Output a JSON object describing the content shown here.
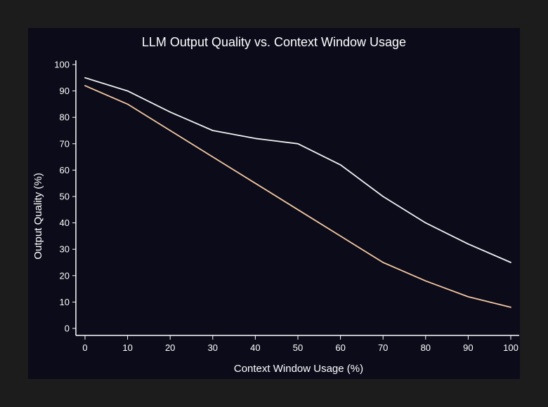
{
  "chart_data": {
    "type": "line",
    "title": "LLM Output Quality vs. Context Window Usage",
    "xlabel": "Context Window Usage (%)",
    "ylabel": "Output Quality (%)",
    "x": [
      0,
      10,
      20,
      30,
      40,
      50,
      60,
      70,
      80,
      90,
      100
    ],
    "xticks": [
      0,
      10,
      20,
      30,
      40,
      50,
      60,
      70,
      80,
      90,
      100
    ],
    "yticks": [
      0,
      10,
      20,
      30,
      40,
      50,
      60,
      70,
      80,
      90,
      100
    ],
    "xlim": [
      0,
      100
    ],
    "ylim": [
      0,
      100
    ],
    "grid": false,
    "legend": "none",
    "series": [
      {
        "values": [
          95,
          90,
          82,
          75,
          72,
          70,
          62,
          50,
          40,
          32,
          25
        ],
        "color": "#f2f2f2"
      },
      {
        "values": [
          92,
          85,
          75,
          65,
          55,
          45,
          35,
          25,
          18,
          12,
          8
        ],
        "color": "#f5c9a0"
      }
    ],
    "colors": {
      "background": "#0b0b1a",
      "page": "#1c1c1c",
      "text": "#ffffff",
      "axis": "#ffffff"
    }
  }
}
